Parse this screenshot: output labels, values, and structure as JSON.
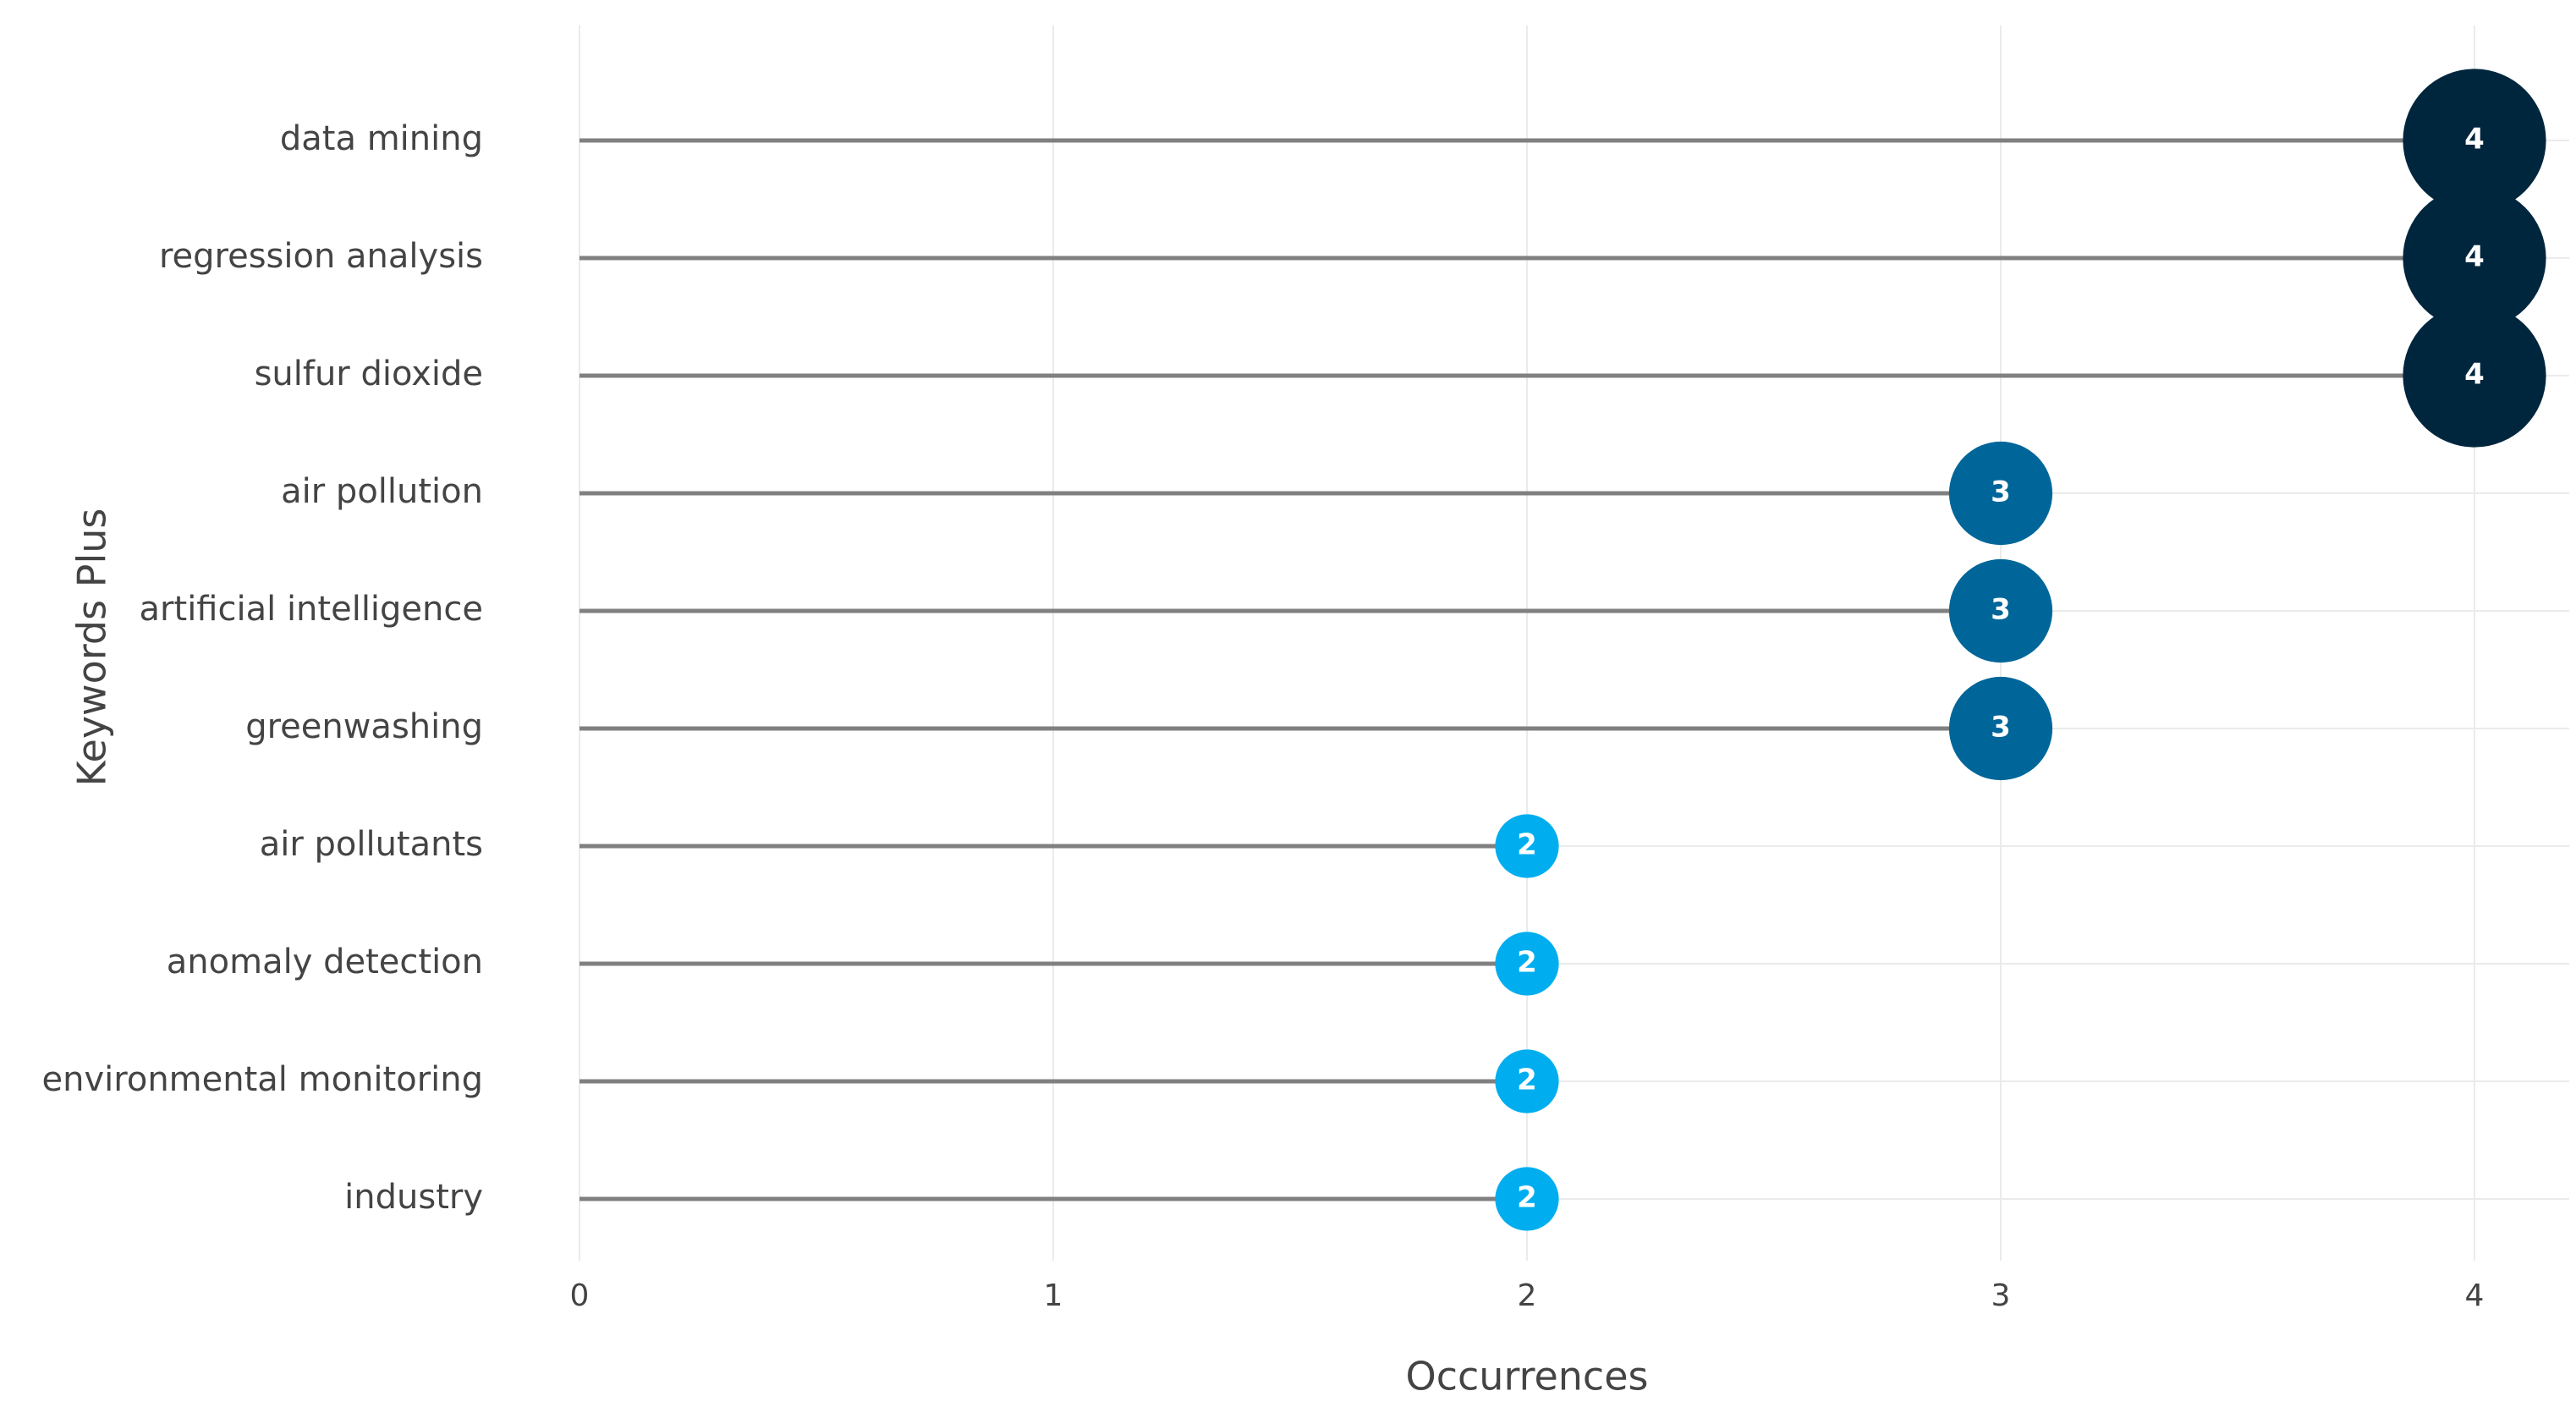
{
  "chart_data": {
    "type": "lollipop",
    "x_label": "Occurrences",
    "y_label": "Keywords Plus",
    "categories": [
      "data mining",
      "regression analysis",
      "sulfur dioxide",
      "air pollution",
      "artificial intelligence",
      "greenwashing",
      "air pollutants",
      "anomaly detection",
      "environmental monitoring",
      "industry"
    ],
    "values": [
      4,
      4,
      4,
      3,
      3,
      3,
      2,
      2,
      2,
      2
    ],
    "colors": [
      "#00263e",
      "#00263e",
      "#00263e",
      "#006699",
      "#006699",
      "#006699",
      "#00aeef",
      "#00aeef",
      "#00aeef",
      "#00aeef"
    ],
    "stem_color": "#808080",
    "xlim": [
      0,
      4.2
    ],
    "xticks": [
      0,
      1,
      2,
      3,
      4
    ],
    "grid": true
  }
}
